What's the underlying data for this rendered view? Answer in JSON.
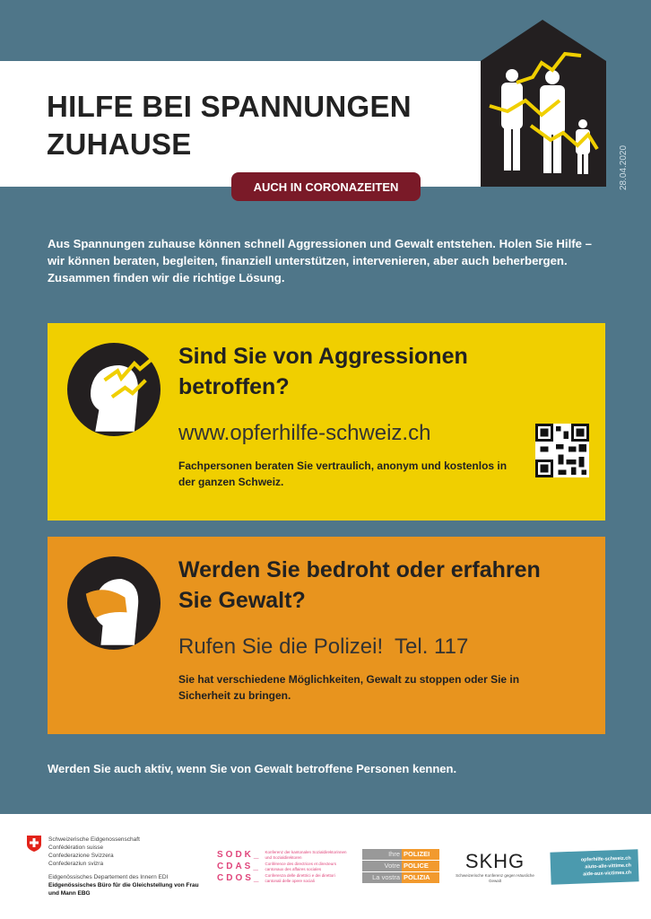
{
  "header": {
    "title_line1": "HILFE BEI SPANNUNGEN",
    "title_line2": "ZUHAUSE",
    "badge": "AUCH IN CORONAZEITEN",
    "date": "28.04.2020"
  },
  "intro": "Aus Spannungen zuhause können schnell Aggressionen und Gewalt entstehen. Holen Sie Hilfe – wir können beraten, begleiten, finanziell unterstützen, intervenieren, aber auch beherbergen. Zusammen finden wir die richtige Lösung.",
  "box1": {
    "heading": "Sind Sie von Aggressionen betroffen?",
    "url": "www.opferhilfe-schweiz.ch",
    "text": "Fachpersonen beraten Sie vertraulich, anonym und kostenlos in der ganzen Schweiz.",
    "color": "#f0cf00"
  },
  "box2": {
    "heading": "Werden Sie bedroht oder erfahren Sie Gewalt?",
    "call": "Rufen Sie die Polizei!  Tel. 117",
    "text": "Sie hat verschiedene Möglichkeiten, Gewalt zu stoppen oder Sie in Sicherheit zu bringen.",
    "color": "#e8941e"
  },
  "outro": "Werden Sie auch aktiv, wenn Sie von Gewalt betroffene Personen kennen.",
  "footer": {
    "fed_lines": [
      "Schweizerische Eidgenossenschaft",
      "Confédération suisse",
      "Confederazione Svizzera",
      "Confederaziun svizra"
    ],
    "edi": "Eidgenössisches Departement des Innern EDI",
    "ebg": "Eidgenössisches Büro für die Gleichstellung von Frau und Mann EBG",
    "sodk": [
      "SODK_",
      "CDAS_",
      "CDOS_"
    ],
    "sodk_desc": [
      "Konferenz der kantonalen Sozialdirektorinnen und Sozialdirektoren",
      "Conférence des directrices et directeurs cantonaux des affaires sociales",
      "Conferenza delle direttrici e dei direttori cantonali delle opere sociali"
    ],
    "police": [
      [
        "Ihre",
        "POLIZEI"
      ],
      [
        "Votre",
        "POLICE"
      ],
      [
        "La vostra",
        "POLIZIA"
      ]
    ],
    "skhg": "SKHG",
    "skhg_sub": "Schweizerische Konferenz gegen Häusliche Gewalt",
    "opferhilfe": [
      "opferhilfe-schweiz.ch",
      "aiuto-alle-vittime.ch",
      "aide-aux-victimes.ch"
    ]
  }
}
